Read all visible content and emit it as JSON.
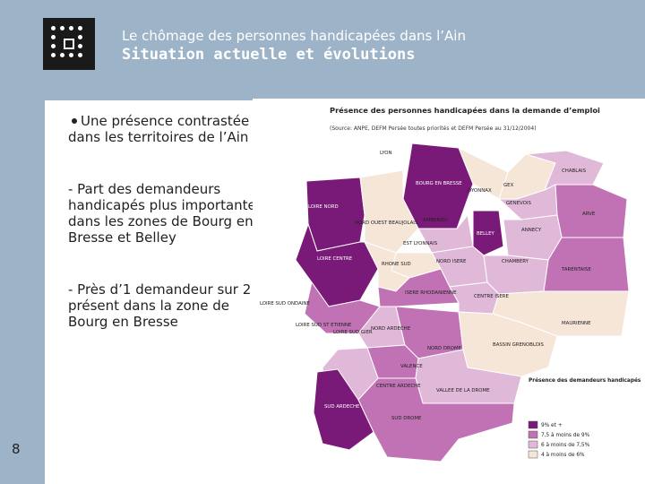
{
  "header": {
    "subtitle": "Le chômage des personnes handicapées dans l’Ain",
    "title": "Situation actuelle et évolutions"
  },
  "content": {
    "bullet_1": "Une présence contrastée dans les territoires de l’Ain",
    "bullet_2": "- Part des demandeurs handicapés plus importante dans les zones de Bourg en Bresse et Belley",
    "bullet_3": "- Près d’1 demandeur sur 2 présent dans la zone de Bourg en Bresse"
  },
  "page_number": "8",
  "map": {
    "title": "Présence des personnes handicapées dans la demande d’emploi",
    "source": "(Source: ANPE, DEFM Persée toutes priorités et DEFM Persée au 31/12/2004)",
    "labels": {
      "lyon": "LYON",
      "bourg": "BOURG EN BRESSE",
      "oyonnax": "OYONNAX",
      "gex": "GEX",
      "chablais": "CHABLAIS",
      "genevois": "GENEVOIS",
      "arve": "ARVE",
      "loire_nord": "LOIRE NORD",
      "nord_ouest_beaujolais": "NORD OUEST BEAUJOLAIS",
      "amberieu": "AMBERIEU",
      "belley": "BELLEY",
      "annecy": "ANNECY",
      "est_lyonnais": "EST LYONNAIS",
      "loire_centre": "LOIRE CENTRE",
      "rhone_sud": "RHONE SUD",
      "nord_isere": "NORD ISERE",
      "chambery": "CHAMBERY",
      "tarentaise": "TARENTAISE",
      "loire_sud_ondaine": "LOIRE SUD ONDAINE",
      "isere_rhodanienne": "ISERE RHODANIENNE",
      "centre_isere": "CENTRE ISERE",
      "loire_sud_st_etienne": "LOIRE SUD ST ETIENNE",
      "loire_sud_gier": "LOIRE SUD GIER",
      "nord_ardeche": "NORD ARDECHE",
      "nord_drome": "NORD DROME",
      "maurienne": "MAURIENNE",
      "valence": "VALENCE",
      "bassin_grenoblois": "BASSIN GRENOBLOIS",
      "centre_ardeche": "CENTRE ARDECHE",
      "vallee_drome": "VALLEE DE LA DROME",
      "sud_ardeche": "SUD ARDECHE",
      "sud_drome": "SUD DROME"
    },
    "legend": {
      "title": "Présence des demandeurs handicapés",
      "items": [
        {
          "label": "9% et +",
          "color": "#7a1a78"
        },
        {
          "label": "7,5 à moins de 9%",
          "color": "#c072b4"
        },
        {
          "label": "6 à moins de 7,5%",
          "color": "#e0b8d8"
        },
        {
          "label": "4 à moins de 6%",
          "color": "#f6e6d8"
        }
      ]
    }
  }
}
